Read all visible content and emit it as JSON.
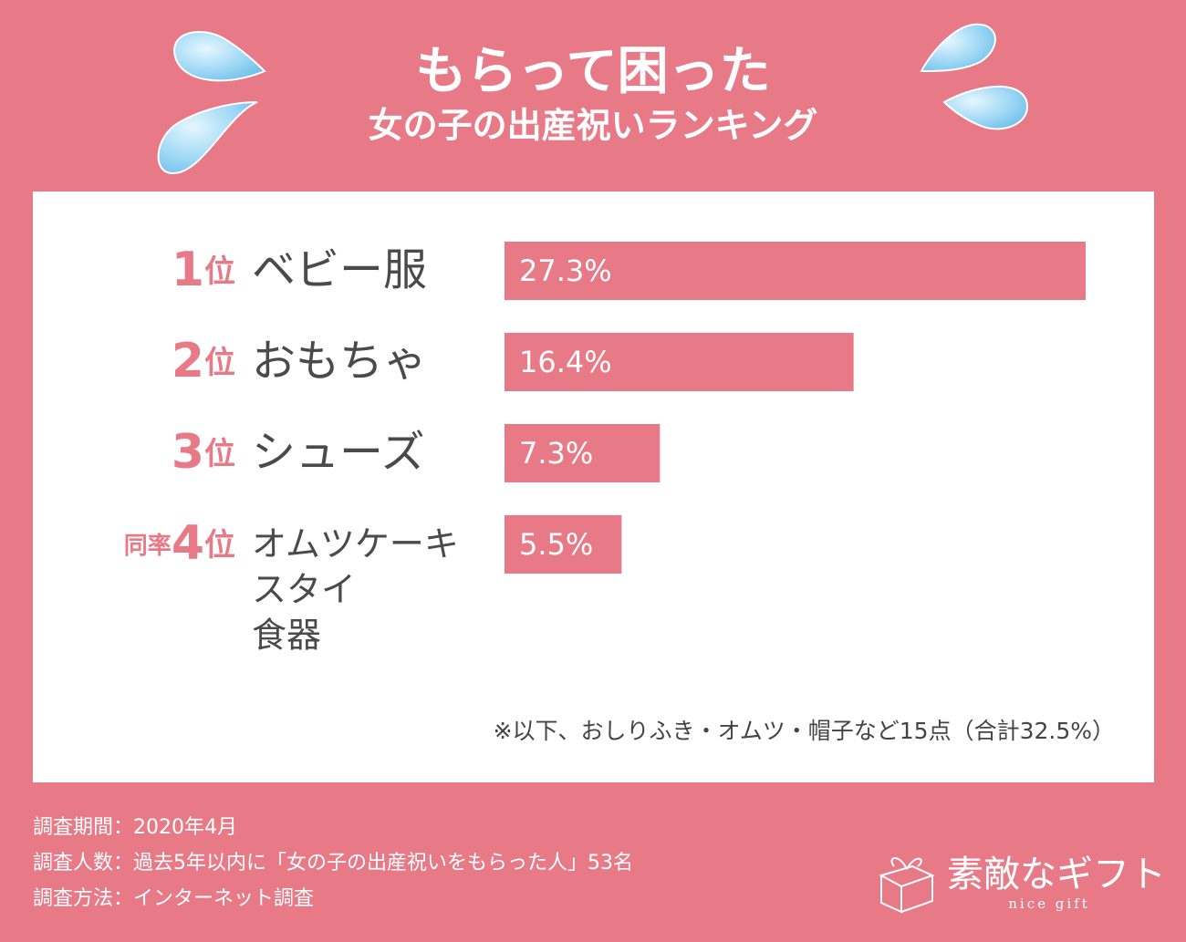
{
  "chart_data": {
    "type": "bar",
    "orientation": "horizontal",
    "title": "もらって困った",
    "subtitle": "女の子の出産祝いランキング",
    "rank_numbers": [
      "1",
      "2",
      "3",
      "4"
    ],
    "rank_suffix": "位",
    "tie_prefix": "同率",
    "categories": [
      "ベビー服",
      "おもちゃ",
      "シューズ",
      [
        "オムツケーキ",
        "スタイ",
        "食器"
      ]
    ],
    "values": [
      27.3,
      16.4,
      7.3,
      5.5
    ],
    "value_labels": [
      "27.3%",
      "16.4%",
      "7.3%",
      "5.5%"
    ],
    "color": "#e87a87",
    "note": "※以下、おしりふき・オムツ・帽子など15点（合計32.5%）",
    "survey": [
      "調査期間：2020年4月",
      "調査人数：過去5年以内に「女の子の出産祝いをもらった人」53名",
      "調査方法：インターネット調査"
    ],
    "brand": "素敵なギフト",
    "brand_sub": "nice gift"
  }
}
